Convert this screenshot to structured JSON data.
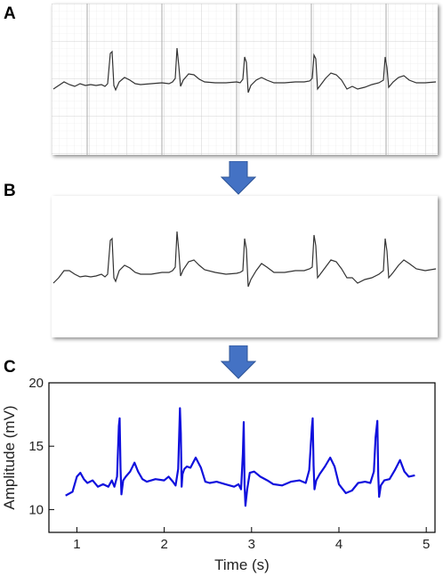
{
  "panels": [
    {
      "label": "A"
    },
    {
      "label": "B"
    },
    {
      "label": "C"
    }
  ],
  "colors": {
    "grid_major": "#bdbdbd",
    "grid_minor": "#e6e6e6",
    "trace_paper": "#333333",
    "trace_digitized": "#1010dd",
    "arrow": "#4472c4"
  },
  "chart_data": {
    "type": "line",
    "title": "",
    "xlabel": "Time (s)",
    "ylabel": "Amplitude (mV)",
    "xlim": [
      0.68,
      5.1
    ],
    "ylim": [
      8.2,
      20
    ],
    "x_ticks": [
      1,
      2,
      3,
      4,
      5
    ],
    "y_ticks": [
      10,
      15,
      20
    ],
    "grid": false,
    "series": [
      {
        "x": [
          0.87,
          0.95,
          1.0,
          1.04,
          1.08,
          1.12,
          1.18,
          1.24,
          1.3,
          1.36,
          1.4,
          1.43,
          1.46,
          1.48,
          1.49,
          1.5,
          1.51,
          1.53,
          1.56,
          1.61,
          1.66,
          1.7,
          1.75,
          1.8,
          1.9,
          2.0,
          2.05,
          2.1,
          2.13,
          2.16,
          2.18,
          2.19,
          2.2,
          2.21,
          2.23,
          2.26,
          2.3,
          2.36,
          2.42,
          2.47,
          2.52,
          2.6,
          2.7,
          2.8,
          2.85,
          2.88,
          2.9,
          2.91,
          2.92,
          2.93,
          2.95,
          2.98,
          3.03,
          3.1,
          3.18,
          3.25,
          3.35,
          3.45,
          3.55,
          3.62,
          3.66,
          3.69,
          3.7,
          3.71,
          3.72,
          3.74,
          3.78,
          3.84,
          3.9,
          3.95,
          4.0,
          4.08,
          4.15,
          4.22,
          4.3,
          4.36,
          4.4,
          4.42,
          4.44,
          4.45,
          4.46,
          4.48,
          4.52,
          4.58,
          4.64,
          4.7,
          4.75,
          4.8,
          4.87
        ],
        "values": [
          11.1,
          11.4,
          12.6,
          12.9,
          12.4,
          12.1,
          12.3,
          11.8,
          12.0,
          11.8,
          12.3,
          11.8,
          12.6,
          16.6,
          17.2,
          13.2,
          11.2,
          12.3,
          12.6,
          13.0,
          13.7,
          13.0,
          12.4,
          12.2,
          12.4,
          12.3,
          12.6,
          12.2,
          11.9,
          13.2,
          18.0,
          16.0,
          11.8,
          12.8,
          13.2,
          13.4,
          13.3,
          14.1,
          13.3,
          12.2,
          12.1,
          12.2,
          12.0,
          11.8,
          12.0,
          11.6,
          14.4,
          16.9,
          12.0,
          10.3,
          11.6,
          12.9,
          13.0,
          12.6,
          12.3,
          12.0,
          11.9,
          12.2,
          12.3,
          12.1,
          13.1,
          16.5,
          17.2,
          13.5,
          11.6,
          12.3,
          12.8,
          13.4,
          14.1,
          13.4,
          12.0,
          11.3,
          11.5,
          12.1,
          12.2,
          12.1,
          13.0,
          15.7,
          17.0,
          12.7,
          11.0,
          11.9,
          12.3,
          12.4,
          13.1,
          13.9,
          13.0,
          12.6,
          12.7
        ]
      }
    ]
  }
}
